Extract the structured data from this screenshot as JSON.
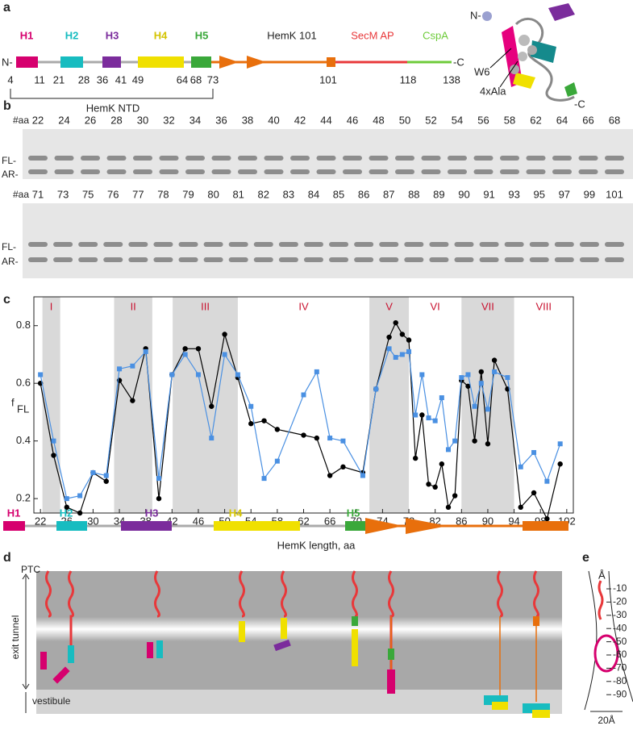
{
  "panel_a": {
    "label": "a",
    "n_term": "N-",
    "c_term": "-C",
    "helices": [
      "H1",
      "H2",
      "H3",
      "H4",
      "H5"
    ],
    "segments": [
      "HemK 101",
      "SecM AP",
      "CspA"
    ],
    "positions": [
      4,
      11,
      21,
      28,
      36,
      41,
      49,
      64,
      68,
      73,
      101,
      118,
      138
    ],
    "bracket": "HemK NTD",
    "structure_labels": [
      "N-",
      "W6",
      "4xAla",
      "-C"
    ]
  },
  "panel_b": {
    "label": "b",
    "row_header": "#aa",
    "rows": [
      [
        22,
        24,
        26,
        28,
        30,
        32,
        34,
        36,
        38,
        40,
        42,
        44,
        46,
        48,
        50,
        52,
        54,
        56,
        58,
        62,
        64,
        66,
        68
      ],
      [
        71,
        73,
        75,
        76,
        77,
        78,
        79,
        80,
        81,
        82,
        83,
        84,
        85,
        86,
        87,
        88,
        89,
        90,
        91,
        93,
        95,
        97,
        99,
        101
      ]
    ],
    "band_labels": [
      "FL-",
      "AR-"
    ]
  },
  "chart_data": {
    "type": "line",
    "panel_label": "c",
    "x": [
      22,
      24,
      26,
      28,
      30,
      32,
      34,
      36,
      38,
      40,
      42,
      44,
      46,
      48,
      50,
      52,
      54,
      56,
      58,
      62,
      64,
      66,
      68,
      71,
      73,
      75,
      76,
      77,
      78,
      79,
      80,
      81,
      82,
      83,
      84,
      85,
      86,
      87,
      88,
      89,
      90,
      91,
      93,
      95,
      97,
      99,
      101
    ],
    "series": [
      {
        "color": "#000000",
        "marker": "circle",
        "values": [
          0.6,
          0.35,
          0.17,
          0.15,
          0.29,
          0.26,
          0.61,
          0.54,
          0.72,
          0.2,
          0.63,
          0.72,
          0.72,
          0.52,
          0.77,
          0.62,
          0.46,
          0.47,
          0.44,
          0.42,
          0.41,
          0.28,
          0.31,
          0.29,
          0.58,
          0.76,
          0.81,
          0.77,
          0.75,
          0.34,
          0.49,
          0.25,
          0.24,
          0.32,
          0.17,
          0.21,
          0.61,
          0.59,
          0.4,
          0.64,
          0.39,
          0.68,
          0.58,
          0.17,
          0.22,
          0.13,
          0.32
        ]
      },
      {
        "color": "#4a90e2",
        "marker": "square",
        "values": [
          0.63,
          0.4,
          0.2,
          0.21,
          0.29,
          0.28,
          0.65,
          0.66,
          0.71,
          0.27,
          0.63,
          0.7,
          0.63,
          0.41,
          0.7,
          0.63,
          0.52,
          0.27,
          0.33,
          0.56,
          0.64,
          0.41,
          0.4,
          0.28,
          0.58,
          0.72,
          0.69,
          0.7,
          0.71,
          0.49,
          0.63,
          0.48,
          0.47,
          0.55,
          0.37,
          0.4,
          0.62,
          0.63,
          0.52,
          0.6,
          0.51,
          0.64,
          0.62,
          0.31,
          0.36,
          0.26,
          0.39
        ]
      }
    ],
    "xlim": [
      21,
      103
    ],
    "xticks": [
      22,
      26,
      30,
      34,
      38,
      42,
      46,
      50,
      54,
      58,
      62,
      66,
      70,
      74,
      78,
      82,
      86,
      90,
      94,
      98,
      102
    ],
    "ylim": [
      0.15,
      0.9
    ],
    "yticks": [
      0.2,
      0.4,
      0.6,
      0.8
    ],
    "ylabel": "f",
    "ylabel_sub": "FL",
    "xlabel": "HemK length, aa",
    "regions": [
      {
        "label": "I",
        "range": [
          22.3,
          25
        ],
        "shaded": true
      },
      {
        "label": "II",
        "range": [
          33.2,
          39
        ],
        "shaded": true
      },
      {
        "label": "III",
        "range": [
          42.1,
          52
        ],
        "shaded": true
      },
      {
        "label": "IV",
        "range": [
          52,
          72
        ],
        "shaded": false
      },
      {
        "label": "V",
        "range": [
          72,
          78
        ],
        "shaded": true
      },
      {
        "label": "VI",
        "range": [
          78,
          86
        ],
        "shaded": false
      },
      {
        "label": "VII",
        "range": [
          86,
          94
        ],
        "shaded": true
      },
      {
        "label": "VIII",
        "range": [
          94,
          103
        ],
        "shaded": false
      }
    ],
    "domains": [
      "H1",
      "H2",
      "H3",
      "H4",
      "H5"
    ]
  },
  "panel_d": {
    "label": "d",
    "ptc": "PTC",
    "tunnel": "exit tunnel",
    "vestibule": "vestibule"
  },
  "panel_e": {
    "label": "e",
    "unit": "Å",
    "ticks": [
      -10,
      -20,
      -30,
      -40,
      -50,
      -60,
      -70,
      -80,
      -90
    ],
    "width": "20Å"
  }
}
